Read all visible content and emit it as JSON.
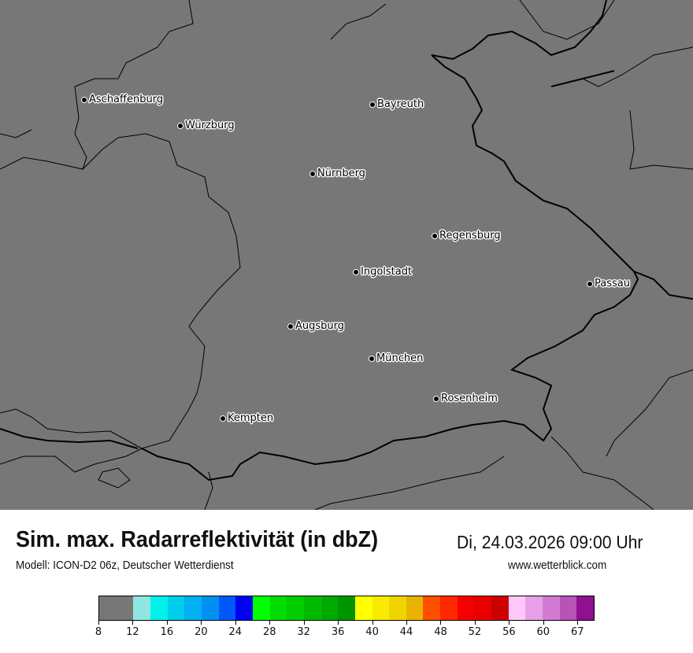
{
  "map": {
    "background": "#777777",
    "cities": [
      {
        "name": "Aschaffenburg"
      },
      {
        "name": "Würzburg"
      },
      {
        "name": "Bayreuth"
      },
      {
        "name": "Nürnberg"
      },
      {
        "name": "Regensburg"
      },
      {
        "name": "Ingolstadt"
      },
      {
        "name": "Passau"
      },
      {
        "name": "Augsburg"
      },
      {
        "name": "München"
      },
      {
        "name": "Rosenheim"
      },
      {
        "name": "Kempten"
      }
    ]
  },
  "header": {
    "title": "Sim. max. Radarreflektivität (in dbZ)",
    "datetime": "Di, 24.03.2026 09:00 Uhr",
    "model": "Modell: ICON-D2 06z, Deutscher Wetterdienst",
    "website": "www.wetterblick.com"
  },
  "colorbar": {
    "colors": [
      "#777777",
      "#8fe6e0",
      "#00f2ea",
      "#00cdec",
      "#00b0f0",
      "#0090f0",
      "#0058f8",
      "#0000f4",
      "#00ff00",
      "#00dd00",
      "#00cc00",
      "#00bb00",
      "#00aa00",
      "#009500",
      "#ffff00",
      "#f8ea00",
      "#f0d400",
      "#e8b400",
      "#ff5000",
      "#ff2800",
      "#f40000",
      "#e80000",
      "#cc0000",
      "#ffc8fa",
      "#e8a0e8",
      "#d27ad2",
      "#b854b8",
      "#901090"
    ],
    "ticks": [
      "8",
      "12",
      "16",
      "20",
      "24",
      "28",
      "32",
      "36",
      "40",
      "44",
      "48",
      "52",
      "56",
      "60",
      "67"
    ]
  }
}
